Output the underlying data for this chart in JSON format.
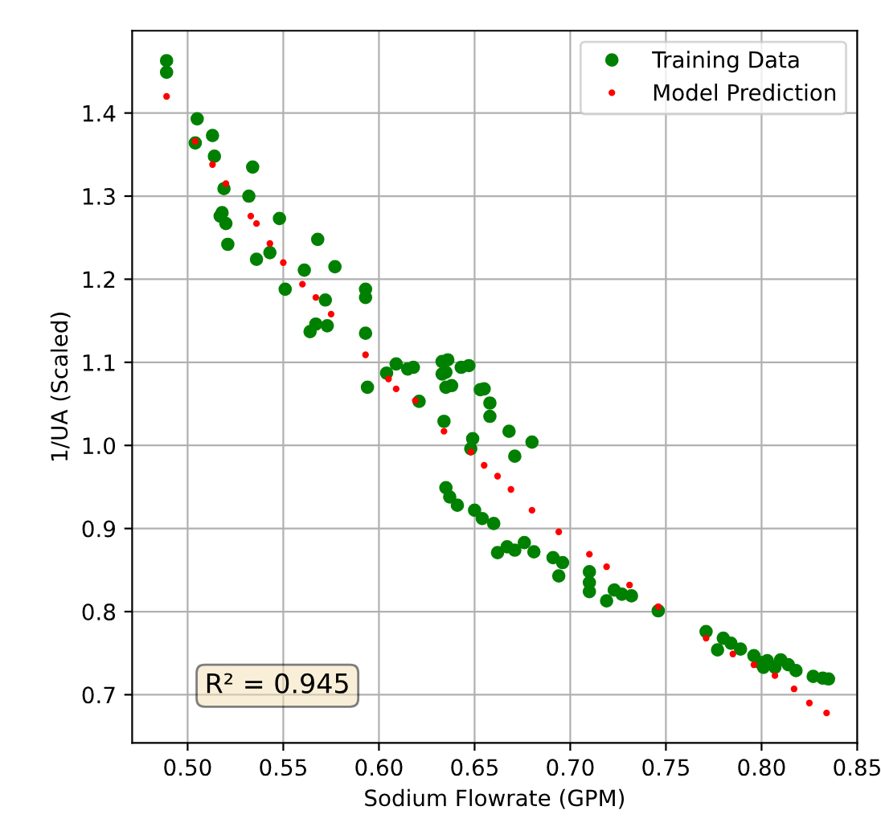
{
  "chart_data": {
    "type": "scatter",
    "xlabel": "Sodium Flowrate (GPM)",
    "ylabel": "1/UA (Scaled)",
    "annotations": [
      "R² = 0.945"
    ],
    "xlim": [
      0.471,
      0.85
    ],
    "ylim": [
      0.642,
      1.499
    ],
    "xticks": [
      {
        "value": 0.5,
        "label": "0.50"
      },
      {
        "value": 0.55,
        "label": "0.55"
      },
      {
        "value": 0.6,
        "label": "0.60"
      },
      {
        "value": 0.65,
        "label": "0.65"
      },
      {
        "value": 0.7,
        "label": "0.70"
      },
      {
        "value": 0.75,
        "label": "0.75"
      },
      {
        "value": 0.8,
        "label": "0.80"
      },
      {
        "value": 0.85,
        "label": "0.85"
      }
    ],
    "yticks": [
      0.7,
      0.8,
      0.9,
      {
        "value": 1,
        "label": "1.0"
      },
      1.1,
      1.2,
      1.3,
      1.4
    ],
    "grid": true,
    "legend": "top right",
    "series": [
      {
        "name": "Training Data",
        "color": "#008000",
        "marker": "circle",
        "x": [
          0.489,
          0.489,
          0.505,
          0.504,
          0.513,
          0.514,
          0.519,
          0.518,
          0.52,
          0.517,
          0.521,
          0.534,
          0.532,
          0.536,
          0.548,
          0.543,
          0.551,
          0.568,
          0.561,
          0.577,
          0.572,
          0.564,
          0.567,
          0.573,
          0.593,
          0.593,
          0.593,
          0.594,
          0.604,
          0.609,
          0.615,
          0.633,
          0.633,
          0.635,
          0.643,
          0.653,
          0.618,
          0.636,
          0.635,
          0.638,
          0.647,
          0.655,
          0.658,
          0.658,
          0.621,
          0.634,
          0.649,
          0.648,
          0.668,
          0.671,
          0.68,
          0.635,
          0.637,
          0.641,
          0.65,
          0.654,
          0.66,
          0.662,
          0.667,
          0.671,
          0.676,
          0.681,
          0.691,
          0.696,
          0.694,
          0.71,
          0.71,
          0.71,
          0.719,
          0.723,
          0.727,
          0.732,
          0.746,
          0.771,
          0.78,
          0.777,
          0.784,
          0.789,
          0.796,
          0.799,
          0.803,
          0.81,
          0.807,
          0.814,
          0.818,
          0.827,
          0.832,
          0.801,
          0.835
        ],
        "values": [
          1.463,
          1.449,
          1.393,
          1.364,
          1.373,
          1.348,
          1.309,
          1.28,
          1.267,
          1.276,
          1.242,
          1.335,
          1.3,
          1.224,
          1.273,
          1.232,
          1.188,
          1.248,
          1.211,
          1.215,
          1.175,
          1.137,
          1.146,
          1.144,
          1.188,
          1.178,
          1.135,
          1.07,
          1.087,
          1.098,
          1.092,
          1.101,
          1.086,
          1.07,
          1.094,
          1.067,
          1.094,
          1.103,
          1.088,
          1.072,
          1.096,
          1.068,
          1.051,
          1.035,
          1.053,
          1.029,
          1.008,
          0.996,
          1.017,
          0.987,
          1.004,
          0.949,
          0.938,
          0.928,
          0.922,
          0.912,
          0.906,
          0.871,
          0.878,
          0.874,
          0.883,
          0.872,
          0.865,
          0.859,
          0.843,
          0.848,
          0.835,
          0.824,
          0.813,
          0.826,
          0.821,
          0.819,
          0.801,
          0.776,
          0.768,
          0.754,
          0.762,
          0.755,
          0.747,
          0.739,
          0.741,
          0.742,
          0.733,
          0.736,
          0.729,
          0.722,
          0.72,
          0.733,
          0.719
        ]
      },
      {
        "name": "Model Prediction",
        "color": "#ff0000",
        "marker": "circle",
        "x": [
          0.489,
          0.504,
          0.513,
          0.52,
          0.533,
          0.536,
          0.543,
          0.55,
          0.56,
          0.567,
          0.575,
          0.593,
          0.605,
          0.609,
          0.619,
          0.634,
          0.648,
          0.655,
          0.662,
          0.669,
          0.68,
          0.694,
          0.71,
          0.719,
          0.731,
          0.746,
          0.771,
          0.785,
          0.796,
          0.807,
          0.817,
          0.825,
          0.834
        ],
        "values": [
          1.42,
          1.366,
          1.338,
          1.315,
          1.276,
          1.267,
          1.243,
          1.22,
          1.194,
          1.178,
          1.158,
          1.109,
          1.08,
          1.068,
          1.054,
          1.017,
          0.992,
          0.976,
          0.963,
          0.947,
          0.922,
          0.896,
          0.869,
          0.854,
          0.832,
          0.806,
          0.768,
          0.749,
          0.736,
          0.723,
          0.707,
          0.69,
          0.678
        ]
      }
    ]
  }
}
